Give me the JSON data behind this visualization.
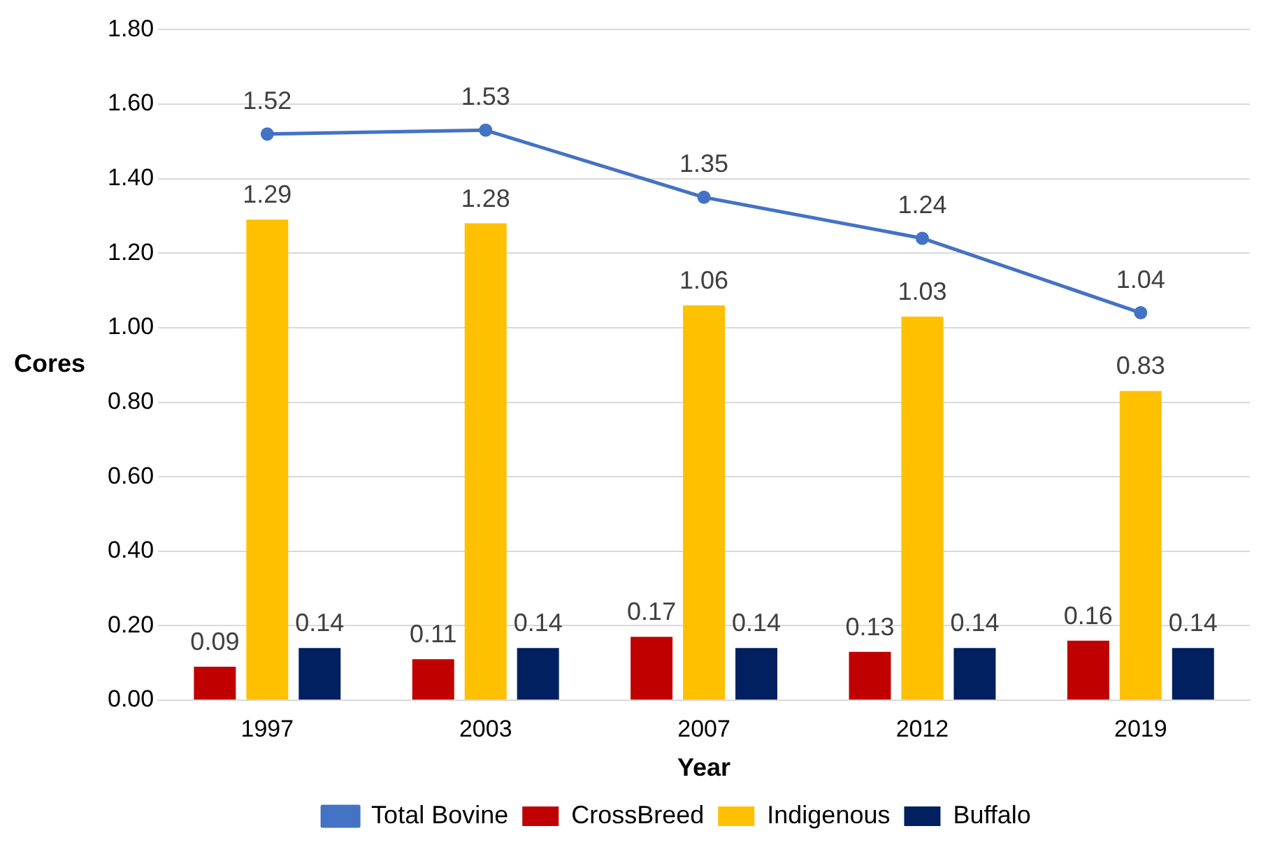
{
  "chart_data": {
    "type": "bar",
    "xlabel": "Year",
    "ylabel": "Cores",
    "categories": [
      "1997",
      "2003",
      "2007",
      "2012",
      "2019"
    ],
    "series": [
      {
        "name": "CrossBreed",
        "color": "#c00000",
        "values": [
          0.09,
          0.11,
          0.17,
          0.13,
          0.16
        ]
      },
      {
        "name": "Indigenous",
        "color": "#ffc000",
        "values": [
          1.29,
          1.28,
          1.06,
          1.03,
          0.83
        ]
      },
      {
        "name": "Buffalo",
        "color": "#002060",
        "values": [
          0.14,
          0.14,
          0.14,
          0.14,
          0.14
        ]
      },
      {
        "name": "Total Bovine",
        "type": "line",
        "color": "#4472c4",
        "values": [
          1.52,
          1.53,
          1.35,
          1.24,
          1.04
        ]
      }
    ],
    "ylim": [
      0,
      1.8
    ],
    "yticks": [
      {
        "value": 0,
        "label": "0.00"
      },
      {
        "value": 0.2,
        "label": "0.20"
      },
      {
        "value": 0.4,
        "label": "0.40"
      },
      {
        "value": 0.6,
        "label": "0.60"
      },
      {
        "value": 0.8,
        "label": "0.80"
      },
      {
        "value": 1,
        "label": "1.00"
      },
      {
        "value": 1.2,
        "label": "1.20"
      },
      {
        "value": 1.4,
        "label": "1.40"
      },
      {
        "value": 1.6,
        "label": "1.60"
      },
      {
        "value": 1.8,
        "label": "1.80"
      }
    ],
    "grid": "y",
    "legend": "bottom",
    "data_labels": true,
    "marker": "circle"
  }
}
